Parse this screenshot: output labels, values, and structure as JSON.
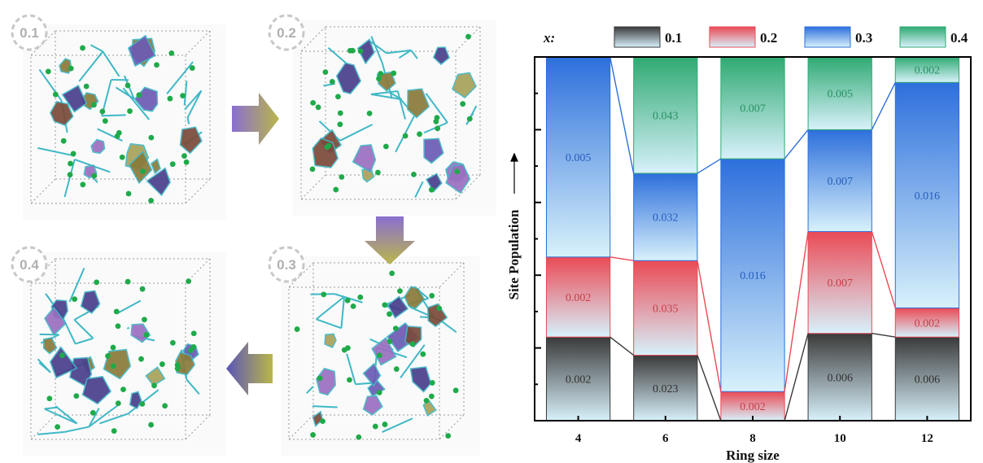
{
  "structures": [
    {
      "label": "0.1"
    },
    {
      "label": "0.2"
    },
    {
      "label": "0.3"
    },
    {
      "label": "0.4"
    }
  ],
  "colors": {
    "series_0.1": "#3a3a3a",
    "series_0.2": "#ea4a55",
    "series_0.3": "#2d6fdc",
    "series_0.4": "#2faa72",
    "bar_light": "#d8f1fb",
    "bond": "#3fb8c6",
    "atom": "#1faa4a"
  },
  "chart_data": {
    "type": "bar",
    "stacked": true,
    "legend_title": "x:",
    "xlabel": "Ring size",
    "ylabel": "Site Population",
    "categories": [
      "4",
      "6",
      "8",
      "10",
      "12"
    ],
    "series": [
      {
        "name": "0.1",
        "values": [
          0.23,
          0.18,
          0.0,
          0.24,
          0.23
        ],
        "labels": [
          "0.002",
          "0.023",
          "",
          "0.006",
          "0.006"
        ]
      },
      {
        "name": "0.2",
        "values": [
          0.22,
          0.26,
          0.08,
          0.28,
          0.08
        ],
        "labels": [
          "0.002",
          "0.035",
          "0.002",
          "0.007",
          "0.002"
        ]
      },
      {
        "name": "0.3",
        "values": [
          0.55,
          0.24,
          0.64,
          0.28,
          0.62
        ],
        "labels": [
          "0.005",
          "0.032",
          "0.016",
          "0.007",
          "0.016"
        ]
      },
      {
        "name": "0.4",
        "values": [
          0.0,
          0.32,
          0.28,
          0.2,
          0.07
        ],
        "labels": [
          "",
          "0.043",
          "0.007",
          "0.005",
          "0.002"
        ]
      }
    ],
    "ylim": [
      0,
      1
    ],
    "legend_position": "top"
  }
}
